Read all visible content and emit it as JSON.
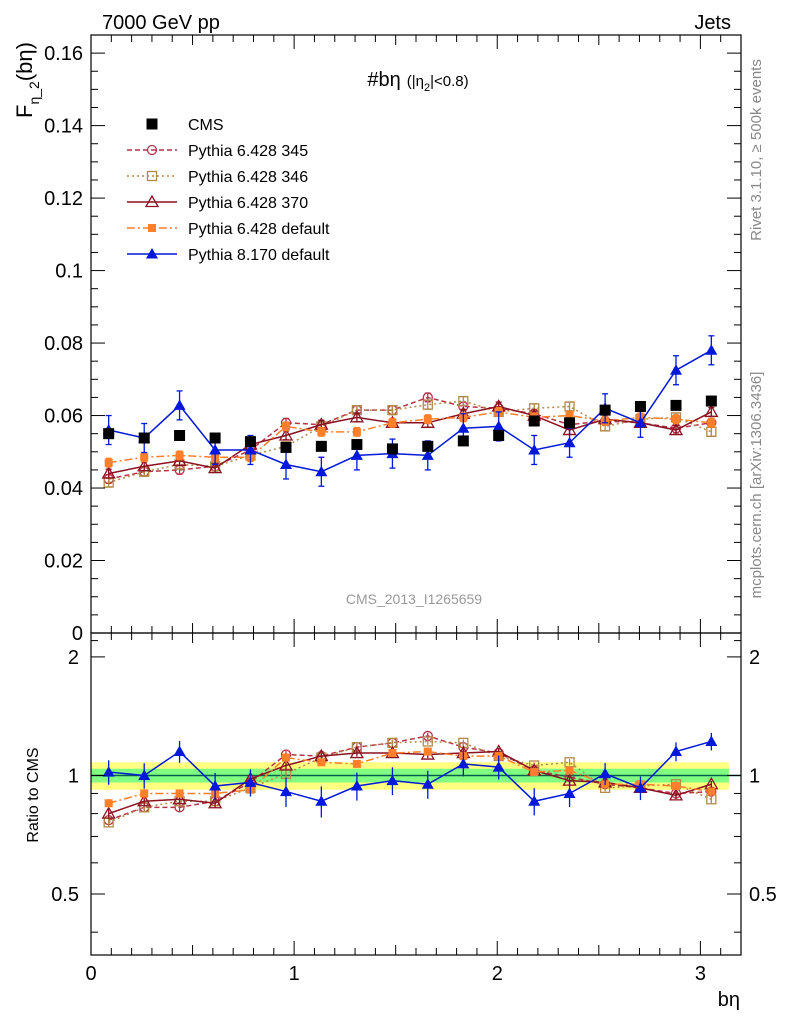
{
  "header": {
    "left": "7000 GeV pp",
    "right": "Jets"
  },
  "side_labels": {
    "rivet": "Rivet 3.1.10, ≥ 500k events",
    "mcplots": "mcplots.cern.ch [arXiv:1306.3436]"
  },
  "watermark": "CMS_2013_I1265659",
  "plot_title": {
    "main": "#bη",
    "cut_open": "(|η",
    "cut_sub": "2",
    "cut_close": "|<0.8)"
  },
  "axes": {
    "ylabel_main": "F",
    "ylabel_sub": "η_2",
    "ylabel_tail": "(bη)",
    "ylabel_ratio": "Ratio to CMS",
    "xlabel": "bη"
  },
  "colors": {
    "cms": "#000000",
    "p345": "#b8324a",
    "p346": "#b08a4a",
    "p370": "#8b1020",
    "p6def": "#ff7f2a",
    "p8def": "#0018d8",
    "band_outer": "#ffff80",
    "band_inner": "#80ff80",
    "ratio_line": "#006050"
  },
  "chart_data": [
    {
      "type": "scatter",
      "title": "#bη (|η_2|<0.8)",
      "xlabel": "bη",
      "ylabel": "F_η_2(bη)",
      "xlim": [
        0,
        3.2
      ],
      "ylim": [
        0,
        0.165
      ],
      "yticks": [
        "0",
        "0.02",
        "0.04",
        "0.06",
        "0.08",
        "0.1",
        "0.12",
        "0.14",
        "0.16"
      ],
      "grid": false,
      "legend_position": "top-left",
      "x": [
        0.087,
        0.262,
        0.436,
        0.611,
        0.785,
        0.96,
        1.134,
        1.309,
        1.484,
        1.658,
        1.833,
        2.007,
        2.182,
        2.356,
        2.531,
        2.705,
        2.88,
        3.054
      ],
      "series": [
        {
          "name": "CMS",
          "style": "cms",
          "marker": "square-filled",
          "line": "none",
          "values": [
            0.055,
            0.0538,
            0.0545,
            0.0538,
            0.0528,
            0.0512,
            0.0515,
            0.052,
            0.0508,
            0.0515,
            0.053,
            0.0545,
            0.0585,
            0.058,
            0.0615,
            0.0625,
            0.0628,
            0.064
          ]
        },
        {
          "name": "Pythia 6.428 345",
          "style": "p345",
          "marker": "circle-open",
          "line": "dashed",
          "values": [
            0.0425,
            0.0445,
            0.045,
            0.046,
            0.0505,
            0.058,
            0.0575,
            0.0615,
            0.0615,
            0.065,
            0.0625,
            0.062,
            0.0605,
            0.0575,
            0.0585,
            0.058,
            0.0565,
            0.058
          ],
          "errors": [
            0.0012,
            0.0012,
            0.0012,
            0.0012,
            0.0012,
            0.0012,
            0.0012,
            0.0012,
            0.0012,
            0.0012,
            0.0012,
            0.0012,
            0.0012,
            0.0012,
            0.0012,
            0.0012,
            0.0012,
            0.0012
          ]
        },
        {
          "name": "Pythia 6.428 346",
          "style": "p346",
          "marker": "square-open",
          "line": "dotted",
          "values": [
            0.0415,
            0.0445,
            0.0465,
            0.046,
            0.049,
            0.0515,
            0.057,
            0.0615,
            0.0615,
            0.063,
            0.064,
            0.061,
            0.062,
            0.0625,
            0.057,
            0.059,
            0.0595,
            0.0555
          ],
          "errors": [
            0.0012,
            0.0012,
            0.0012,
            0.0012,
            0.0012,
            0.0012,
            0.0012,
            0.0012,
            0.0012,
            0.0012,
            0.0012,
            0.0012,
            0.0012,
            0.0012,
            0.0012,
            0.0012,
            0.0012,
            0.0012
          ]
        },
        {
          "name": "Pythia 6.428 370",
          "style": "p370",
          "marker": "triangle-open",
          "line": "solid",
          "values": [
            0.044,
            0.046,
            0.0475,
            0.0455,
            0.052,
            0.0545,
            0.0575,
            0.0595,
            0.058,
            0.058,
            0.0605,
            0.0625,
            0.06,
            0.056,
            0.059,
            0.058,
            0.056,
            0.061
          ],
          "errors": [
            0.0012,
            0.0012,
            0.0012,
            0.0012,
            0.0012,
            0.0012,
            0.0012,
            0.0012,
            0.0012,
            0.0012,
            0.0012,
            0.0012,
            0.0012,
            0.0012,
            0.0012,
            0.0012,
            0.0012,
            0.0012
          ]
        },
        {
          "name": "Pythia 6.428 default",
          "style": "p6def",
          "marker": "square-small",
          "line": "dashdot",
          "values": [
            0.047,
            0.0485,
            0.049,
            0.0485,
            0.0485,
            0.057,
            0.0555,
            0.0555,
            0.058,
            0.059,
            0.0595,
            0.061,
            0.0595,
            0.06,
            0.0585,
            0.0595,
            0.059,
            0.058
          ],
          "errors": [
            0.0012,
            0.0012,
            0.0012,
            0.0012,
            0.0012,
            0.0012,
            0.0012,
            0.0012,
            0.0012,
            0.0012,
            0.0012,
            0.0012,
            0.0012,
            0.0012,
            0.0012,
            0.0012,
            0.0012,
            0.0012
          ]
        },
        {
          "name": "Pythia 8.170 default",
          "style": "p8def",
          "marker": "triangle-filled",
          "line": "solid",
          "values": [
            0.056,
            0.0538,
            0.0628,
            0.0505,
            0.0505,
            0.0465,
            0.0445,
            0.049,
            0.0495,
            0.049,
            0.0565,
            0.057,
            0.0505,
            0.0525,
            0.062,
            0.058,
            0.0725,
            0.078
          ],
          "errors": [
            0.004,
            0.004,
            0.004,
            0.004,
            0.004,
            0.004,
            0.004,
            0.004,
            0.004,
            0.004,
            0.004,
            0.004,
            0.004,
            0.004,
            0.004,
            0.004,
            0.004,
            0.004
          ]
        }
      ]
    },
    {
      "type": "scatter",
      "title": "",
      "xlabel": "bη",
      "ylabel": "Ratio to CMS",
      "xlim": [
        0,
        3.2
      ],
      "ylim": [
        0.35,
        2.3
      ],
      "yscale": "log",
      "yticks": [
        "0.5",
        "1",
        "2"
      ],
      "xticks": [
        "0",
        "1",
        "2",
        "3"
      ],
      "grid": false,
      "reference_line": 1,
      "band_outer_halfwidth": 0.08,
      "band_inner_halfwidth": 0.04,
      "series": [
        {
          "name": "Pythia 6.428 345",
          "style": "p345",
          "values": [
            0.77,
            0.83,
            0.83,
            0.86,
            0.96,
            1.13,
            1.12,
            1.18,
            1.21,
            1.26,
            1.18,
            1.14,
            1.03,
            0.99,
            0.95,
            0.93,
            0.9,
            0.91
          ]
        },
        {
          "name": "Pythia 6.428 346",
          "style": "p346",
          "values": [
            0.76,
            0.83,
            0.86,
            0.86,
            0.93,
            1.01,
            1.11,
            1.18,
            1.21,
            1.22,
            1.21,
            1.12,
            1.06,
            1.08,
            0.93,
            0.94,
            0.95,
            0.87
          ]
        },
        {
          "name": "Pythia 6.428 370",
          "style": "p370",
          "values": [
            0.8,
            0.86,
            0.87,
            0.85,
            0.98,
            1.06,
            1.12,
            1.14,
            1.14,
            1.13,
            1.14,
            1.15,
            1.03,
            0.97,
            0.96,
            0.93,
            0.89,
            0.95
          ]
        },
        {
          "name": "Pythia 6.428 default",
          "style": "p6def",
          "values": [
            0.85,
            0.9,
            0.9,
            0.9,
            0.92,
            1.11,
            1.08,
            1.07,
            1.14,
            1.15,
            1.12,
            1.12,
            1.02,
            1.03,
            0.95,
            0.95,
            0.94,
            0.91
          ]
        },
        {
          "name": "Pythia 8.170 default",
          "style": "p8def",
          "values": [
            1.02,
            1.0,
            1.15,
            0.94,
            0.96,
            0.91,
            0.86,
            0.94,
            0.97,
            0.95,
            1.07,
            1.05,
            0.86,
            0.9,
            1.01,
            0.93,
            1.15,
            1.22
          ]
        }
      ]
    }
  ]
}
